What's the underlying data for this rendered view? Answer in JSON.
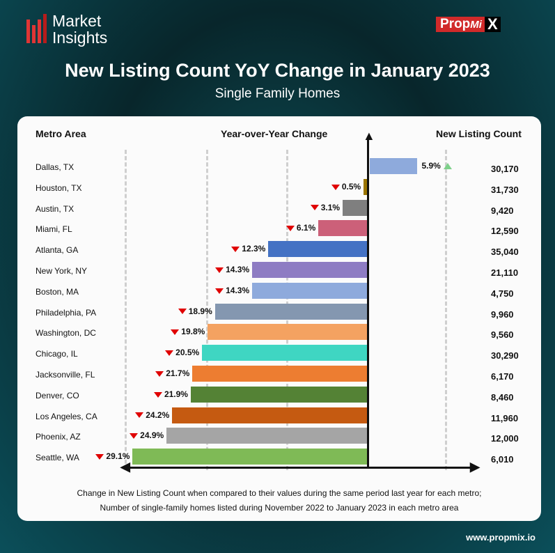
{
  "brand": {
    "logo_line1": "Market",
    "logo_line2": "Insights",
    "propmix_prop": "Prop",
    "propmix_mi": "Mi",
    "propmix_x": "X",
    "url": "www.propmix.io"
  },
  "chart_data": {
    "type": "bar",
    "title": "New Listing Count YoY Change in January 2023",
    "subtitle": "Single Family Homes",
    "col_metro": "Metro Area",
    "col_change": "Year-over-Year Change",
    "col_count": "New Listing Count",
    "xlim": [
      -30,
      10
    ],
    "rows": [
      {
        "metro": "Dallas, TX",
        "change": 5.9,
        "label": "5.9%",
        "count": "30,170",
        "color": "#8eaadc"
      },
      {
        "metro": "Houston, TX",
        "change": -0.5,
        "label": "0.5%",
        "count": "31,730",
        "color": "#9a7500"
      },
      {
        "metro": "Austin, TX",
        "change": -3.1,
        "label": "3.1%",
        "count": "9,420",
        "color": "#7f7f7f"
      },
      {
        "metro": "Miami, FL",
        "change": -6.1,
        "label": "6.1%",
        "count": "12,590",
        "color": "#cc6079"
      },
      {
        "metro": "Atlanta, GA",
        "change": -12.3,
        "label": "12.3%",
        "count": "35,040",
        "color": "#4472c4"
      },
      {
        "metro": "New York, NY",
        "change": -14.3,
        "label": "14.3%",
        "count": "21,110",
        "color": "#8e7cc3"
      },
      {
        "metro": "Boston, MA",
        "change": -14.3,
        "label": "14.3%",
        "count": "4,750",
        "color": "#8eaadc"
      },
      {
        "metro": "Philadelphia, PA",
        "change": -18.9,
        "label": "18.9%",
        "count": "9,960",
        "color": "#8497b0"
      },
      {
        "metro": "Washington, DC",
        "change": -19.8,
        "label": "19.8%",
        "count": "9,560",
        "color": "#f4a261"
      },
      {
        "metro": "Chicago, IL",
        "change": -20.5,
        "label": "20.5%",
        "count": "30,290",
        "color": "#3fd6c2"
      },
      {
        "metro": "Jacksonville, FL",
        "change": -21.7,
        "label": "21.7%",
        "count": "6,170",
        "color": "#ed7d31"
      },
      {
        "metro": "Denver, CO",
        "change": -21.9,
        "label": "21.9%",
        "count": "8,460",
        "color": "#548235"
      },
      {
        "metro": "Los Angeles, CA",
        "change": -24.2,
        "label": "24.2%",
        "count": "11,960",
        "color": "#c55a11"
      },
      {
        "metro": "Phoenix, AZ",
        "change": -24.9,
        "label": "24.9%",
        "count": "12,000",
        "color": "#a5a5a5"
      },
      {
        "metro": "Seattle, WA",
        "change": -29.1,
        "label": "29.1%",
        "count": "6,010",
        "color": "#7fba56"
      }
    ],
    "footnote1": "Change in New Listing Count when compared to their values during the same period last year for each metro;",
    "footnote2": "Number of single-family homes listed during November 2022 to January 2023 in each metro area"
  }
}
